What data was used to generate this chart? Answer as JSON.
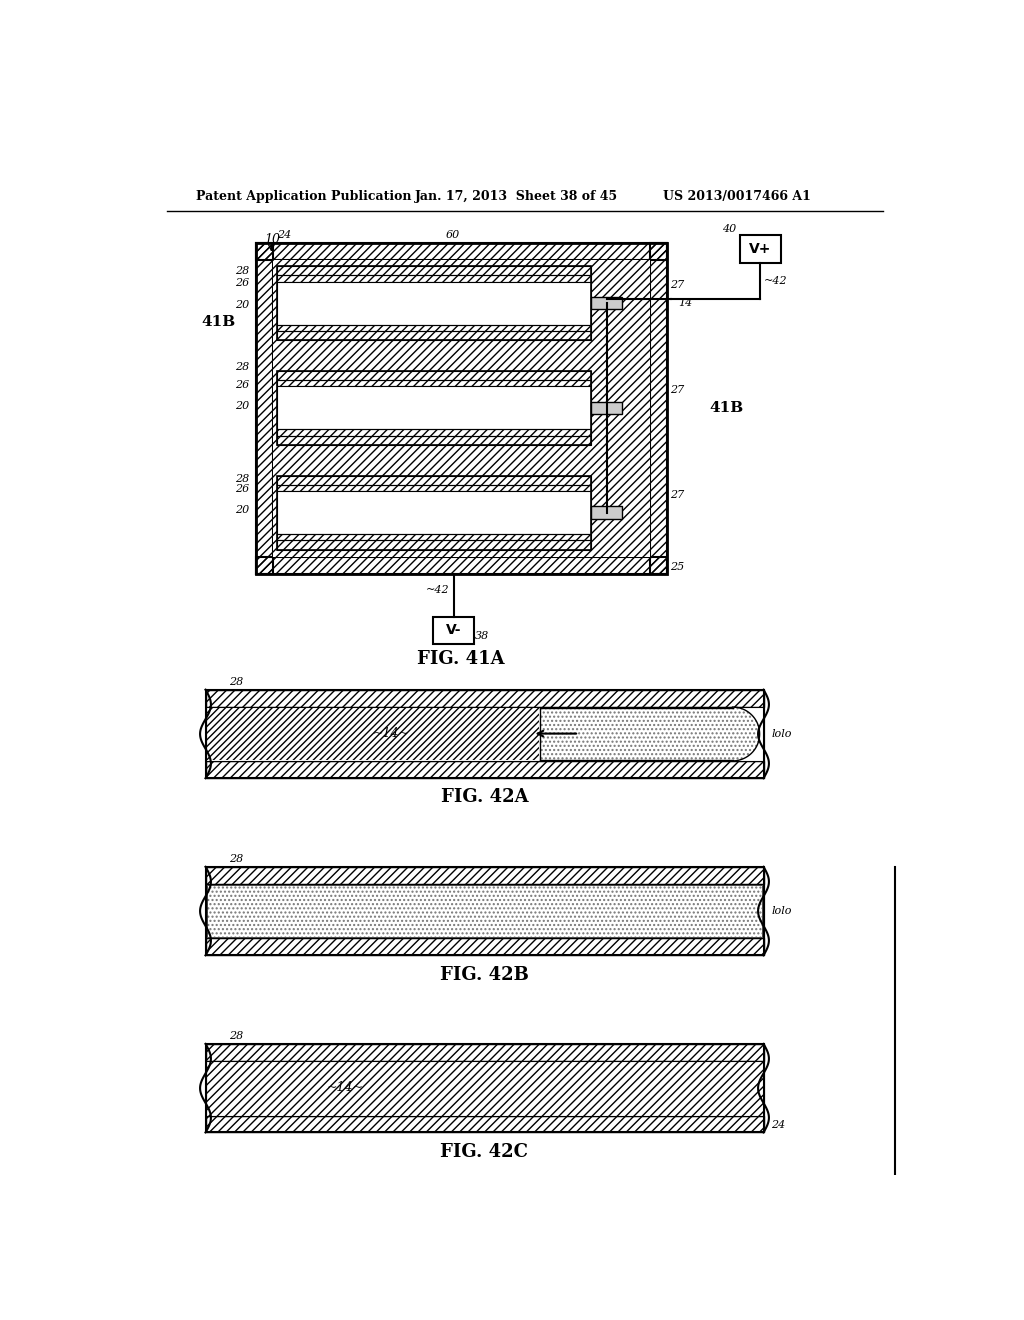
{
  "header_left": "Patent Application Publication",
  "header_center": "Jan. 17, 2013  Sheet 38 of 45",
  "header_right": "US 2013/0017466 A1",
  "fig41a_label": "FIG. 41A",
  "fig42a_label": "FIG. 42A",
  "fig42b_label": "FIG. 42B",
  "fig42c_label": "FIG. 42C",
  "bg_color": "#ffffff",
  "line_color": "#000000"
}
